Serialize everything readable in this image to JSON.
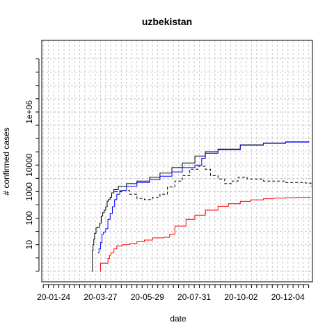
{
  "chart_data": {
    "type": "line",
    "title": "uzbekistan",
    "xlabel": "date",
    "ylabel": "# confirmed cases",
    "x_axis": {
      "type": "date",
      "range": [
        "2020-01-08",
        "2021-01-06"
      ],
      "labeled_ticks": [
        "20-01-24",
        "20-03-27",
        "20-05-29",
        "20-07-31",
        "20-10-02",
        "20-12-04"
      ],
      "labeled_tick_dates": [
        "2020-01-24",
        "2020-03-27",
        "2020-05-29",
        "2020-07-31",
        "2020-10-02",
        "2020-12-04"
      ]
    },
    "y_axis": {
      "scale": "log10",
      "range": [
        0.4,
        500000000
      ],
      "tick_labels": [
        "10",
        "100",
        "1000",
        "10000",
        "1e+06"
      ],
      "tick_values": [
        10,
        100,
        1000,
        10000,
        1000000
      ]
    },
    "grid": true,
    "series": [
      {
        "color": "#000000",
        "style": "solid",
        "points": [
          [
            "2020-03-15",
            1
          ],
          [
            "2020-03-16",
            6
          ],
          [
            "2020-03-17",
            10
          ],
          [
            "2020-03-18",
            16
          ],
          [
            "2020-03-19",
            27
          ],
          [
            "2020-03-21",
            43
          ],
          [
            "2020-03-23",
            46
          ],
          [
            "2020-03-26",
            65
          ],
          [
            "2020-03-28",
            120
          ],
          [
            "2020-03-30",
            160
          ],
          [
            "2020-04-01",
            200
          ],
          [
            "2020-04-03",
            270
          ],
          [
            "2020-04-05",
            440
          ],
          [
            "2020-04-07",
            520
          ],
          [
            "2020-04-09",
            600
          ],
          [
            "2020-04-11",
            900
          ],
          [
            "2020-04-14",
            1200
          ],
          [
            "2020-04-20",
            1600
          ],
          [
            "2020-05-01",
            2000
          ],
          [
            "2020-05-15",
            2500
          ],
          [
            "2020-06-01",
            3500
          ],
          [
            "2020-06-15",
            5000
          ],
          [
            "2020-07-01",
            8000
          ],
          [
            "2020-07-15",
            12000
          ],
          [
            "2020-08-01",
            22000
          ],
          [
            "2020-08-15",
            32000
          ],
          [
            "2020-09-01",
            40000
          ],
          [
            "2020-10-01",
            58000
          ],
          [
            "2020-11-01",
            68000
          ],
          [
            "2020-12-01",
            75000
          ],
          [
            "2021-01-01",
            80000
          ]
        ]
      },
      {
        "color": "#0000ff",
        "style": "solid",
        "points": [
          [
            "2020-03-23",
            5
          ],
          [
            "2020-03-25",
            7
          ],
          [
            "2020-03-27",
            12
          ],
          [
            "2020-03-29",
            25
          ],
          [
            "2020-03-31",
            30
          ],
          [
            "2020-04-03",
            40
          ],
          [
            "2020-04-06",
            90
          ],
          [
            "2020-04-09",
            150
          ],
          [
            "2020-04-12",
            270
          ],
          [
            "2020-04-15",
            500
          ],
          [
            "2020-04-18",
            800
          ],
          [
            "2020-04-22",
            1100
          ],
          [
            "2020-05-01",
            1600
          ],
          [
            "2020-05-15",
            2200
          ],
          [
            "2020-06-01",
            2800
          ],
          [
            "2020-06-15",
            3800
          ],
          [
            "2020-07-01",
            5500
          ],
          [
            "2020-07-15",
            8000
          ],
          [
            "2020-08-01",
            10000
          ],
          [
            "2020-08-10",
            18000
          ],
          [
            "2020-08-15",
            28000
          ],
          [
            "2020-09-01",
            38000
          ],
          [
            "2020-10-01",
            56000
          ],
          [
            "2020-11-01",
            66000
          ],
          [
            "2020-12-01",
            73000
          ],
          [
            "2021-01-01",
            78000
          ]
        ]
      },
      {
        "color": "#000000",
        "style": "dashed",
        "points": [
          [
            "2020-04-15",
            1000
          ],
          [
            "2020-04-25",
            1100
          ],
          [
            "2020-05-05",
            800
          ],
          [
            "2020-05-15",
            550
          ],
          [
            "2020-05-25",
            500
          ],
          [
            "2020-06-05",
            600
          ],
          [
            "2020-06-15",
            800
          ],
          [
            "2020-06-25",
            1500
          ],
          [
            "2020-07-05",
            2500
          ],
          [
            "2020-07-15",
            4000
          ],
          [
            "2020-07-25",
            7000
          ],
          [
            "2020-08-05",
            9000
          ],
          [
            "2020-08-15",
            7000
          ],
          [
            "2020-08-22",
            4000
          ],
          [
            "2020-09-01",
            3000
          ],
          [
            "2020-09-10",
            2000
          ],
          [
            "2020-09-20",
            2500
          ],
          [
            "2020-09-28",
            3500
          ],
          [
            "2020-10-10",
            3000
          ],
          [
            "2020-11-01",
            2500
          ],
          [
            "2020-12-01",
            2200
          ],
          [
            "2020-12-28",
            2100
          ],
          [
            "2021-01-04",
            1500
          ]
        ]
      },
      {
        "color": "#ff0000",
        "style": "solid",
        "points": [
          [
            "2020-03-26",
            1
          ],
          [
            "2020-03-27",
            2
          ],
          [
            "2020-04-03",
            2
          ],
          [
            "2020-04-06",
            3
          ],
          [
            "2020-04-08",
            4
          ],
          [
            "2020-04-10",
            5
          ],
          [
            "2020-04-14",
            7
          ],
          [
            "2020-04-18",
            9
          ],
          [
            "2020-04-25",
            10
          ],
          [
            "2020-05-05",
            11
          ],
          [
            "2020-05-15",
            13
          ],
          [
            "2020-05-25",
            15
          ],
          [
            "2020-06-05",
            18
          ],
          [
            "2020-06-20",
            19
          ],
          [
            "2020-06-28",
            25
          ],
          [
            "2020-07-05",
            50
          ],
          [
            "2020-07-20",
            90
          ],
          [
            "2020-08-01",
            130
          ],
          [
            "2020-08-15",
            200
          ],
          [
            "2020-09-01",
            280
          ],
          [
            "2020-09-15",
            350
          ],
          [
            "2020-10-01",
            430
          ],
          [
            "2020-10-15",
            490
          ],
          [
            "2020-11-01",
            540
          ],
          [
            "2020-11-15",
            570
          ],
          [
            "2020-12-01",
            590
          ],
          [
            "2020-12-15",
            600
          ],
          [
            "2021-01-04",
            610
          ]
        ]
      }
    ]
  }
}
